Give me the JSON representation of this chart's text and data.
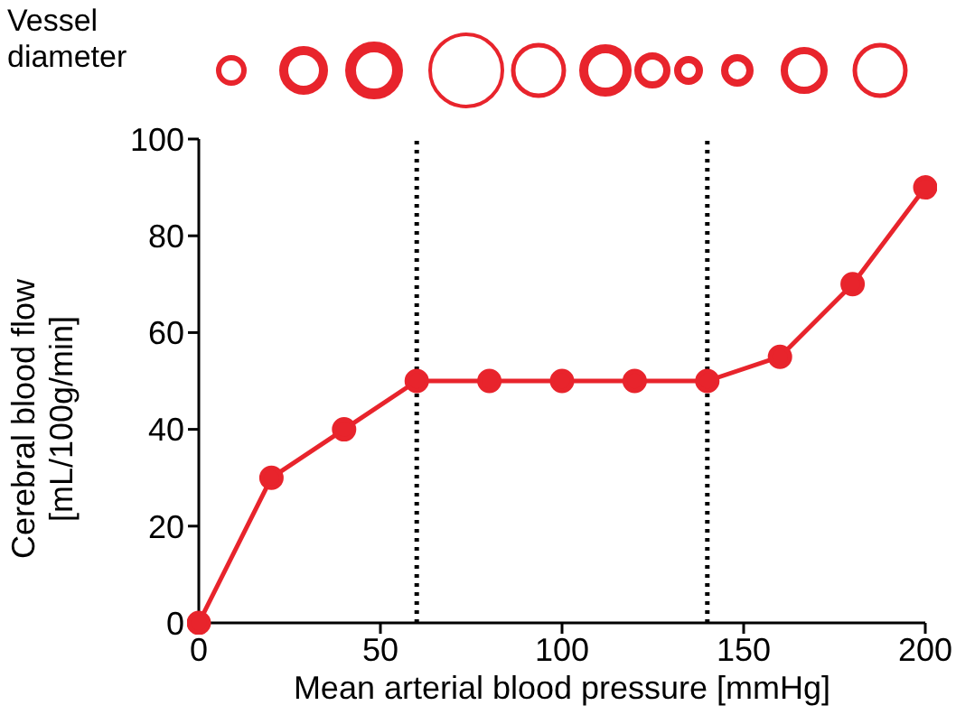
{
  "chart_data": {
    "type": "line",
    "xlabel": "Mean arterial blood pressure [mmHg]",
    "ylabel": "Cerebral blood flow [mL/100g/min]",
    "annotations": [
      "Vessel diameter"
    ],
    "x": [
      0,
      20,
      40,
      60,
      80,
      100,
      120,
      140,
      160,
      180,
      200
    ],
    "series": [
      {
        "color": "#e8242c",
        "values": [
          0,
          30,
          40,
          50,
          50,
          50,
          50,
          50,
          55,
          70,
          90
        ]
      }
    ],
    "xlim": [
      0,
      200
    ],
    "xticks": [
      0,
      50,
      100,
      150,
      200
    ],
    "ylim": [
      0,
      100
    ],
    "yticks": [
      0,
      20,
      40,
      60,
      80,
      100
    ],
    "ref_lines": [
      {
        "axis": "x",
        "value": 60,
        "color": "#000000",
        "line_style": "dotted"
      },
      {
        "axis": "x",
        "value": 140,
        "color": "#000000",
        "line_style": "dotted"
      }
    ],
    "grid": false,
    "legend": false,
    "marker": "circle",
    "line_style": "solid"
  }
}
